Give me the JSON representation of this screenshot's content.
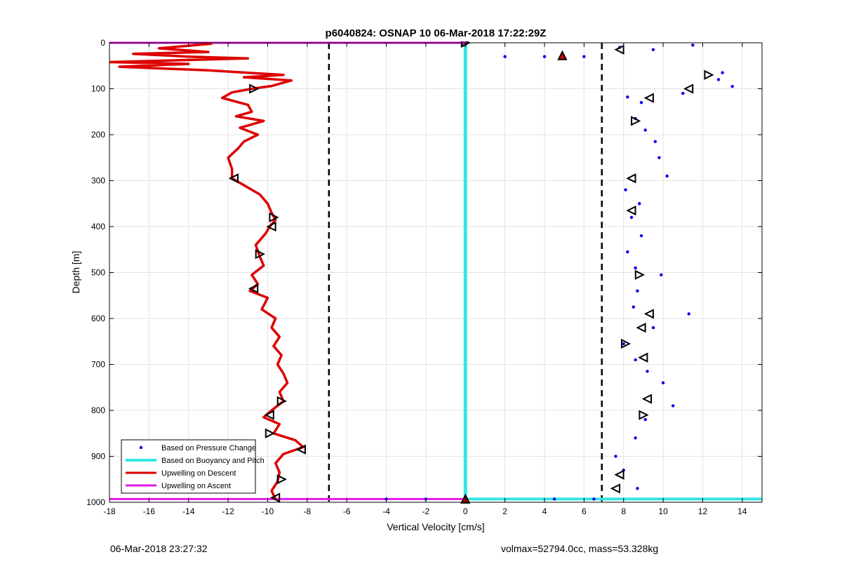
{
  "chart_data": {
    "type": "scatter",
    "title": "p6040824: OSNAP 10 06-Mar-2018 17:22:29Z",
    "xlabel": "Vertical Velocity [cm/s]",
    "ylabel": "Depth [m]",
    "xlim": [
      -18,
      15
    ],
    "ylim": [
      0,
      1000
    ],
    "y_reversed": true,
    "grid": true,
    "xticks": [
      -18,
      -16,
      -14,
      -12,
      -10,
      -8,
      -6,
      -4,
      -2,
      0,
      2,
      4,
      6,
      8,
      10,
      12,
      14
    ],
    "yticks": [
      0,
      100,
      200,
      300,
      400,
      500,
      600,
      700,
      800,
      900,
      1000
    ],
    "legend_position": "bottom-left",
    "colors": {
      "pressure": "#0000ee",
      "buoyancy": "#33e6e6",
      "descent": "#dd0000",
      "ascent": "#e619e6",
      "reference_lines": "#000000"
    },
    "series": [
      {
        "name": "Based on Pressure Change",
        "style": "dots",
        "points": [
          [
            2.0,
            30
          ],
          [
            4.0,
            30
          ],
          [
            6.0,
            30
          ],
          [
            7.8,
            10
          ],
          [
            9.5,
            15
          ],
          [
            11.5,
            5
          ],
          [
            13.0,
            65
          ],
          [
            13.5,
            95
          ],
          [
            12.8,
            80
          ],
          [
            11.0,
            110
          ],
          [
            8.2,
            118
          ],
          [
            8.9,
            130
          ],
          [
            8.6,
            165
          ],
          [
            9.1,
            190
          ],
          [
            9.6,
            215
          ],
          [
            9.8,
            250
          ],
          [
            10.2,
            290
          ],
          [
            8.1,
            320
          ],
          [
            8.8,
            350
          ],
          [
            8.4,
            380
          ],
          [
            8.9,
            420
          ],
          [
            8.2,
            455
          ],
          [
            8.6,
            490
          ],
          [
            9.9,
            505
          ],
          [
            8.7,
            540
          ],
          [
            8.5,
            575
          ],
          [
            11.3,
            590
          ],
          [
            9.5,
            620
          ],
          [
            8.0,
            655
          ],
          [
            8.6,
            690
          ],
          [
            9.2,
            715
          ],
          [
            10.0,
            740
          ],
          [
            10.5,
            790
          ],
          [
            9.1,
            820
          ],
          [
            8.6,
            860
          ],
          [
            7.6,
            900
          ],
          [
            8.0,
            930
          ],
          [
            8.7,
            970
          ],
          [
            -2.0,
            993
          ],
          [
            -4.0,
            993
          ],
          [
            4.5,
            993
          ],
          [
            6.5,
            993
          ]
        ]
      },
      {
        "name": "Based on Buoyancy and Pitch",
        "style": "line",
        "points": [
          [
            0,
            0
          ],
          [
            0,
            993
          ],
          [
            15,
            993
          ]
        ]
      },
      {
        "name": "Upwelling on Descent",
        "style": "line",
        "points": [
          [
            -12.8,
            2
          ],
          [
            -15.5,
            12
          ],
          [
            -13.0,
            20
          ],
          [
            -16.8,
            24
          ],
          [
            -14.0,
            30
          ],
          [
            -11.0,
            34
          ],
          [
            -18.0,
            42
          ],
          [
            -14.0,
            46
          ],
          [
            -17.5,
            52
          ],
          [
            -13.0,
            60
          ],
          [
            -9.2,
            70
          ],
          [
            -11.2,
            75
          ],
          [
            -8.8,
            82
          ],
          [
            -9.8,
            94
          ],
          [
            -10.8,
            100
          ],
          [
            -11.8,
            108
          ],
          [
            -12.3,
            120
          ],
          [
            -11.0,
            135
          ],
          [
            -10.8,
            150
          ],
          [
            -11.6,
            160
          ],
          [
            -10.2,
            170
          ],
          [
            -11.4,
            185
          ],
          [
            -10.5,
            200
          ],
          [
            -11.2,
            215
          ],
          [
            -11.5,
            230
          ],
          [
            -12.0,
            250
          ],
          [
            -11.8,
            275
          ],
          [
            -11.8,
            295
          ],
          [
            -11.0,
            315
          ],
          [
            -10.4,
            330
          ],
          [
            -10.0,
            350
          ],
          [
            -9.8,
            370
          ],
          [
            -9.6,
            385
          ],
          [
            -9.9,
            400
          ],
          [
            -10.1,
            415
          ],
          [
            -10.6,
            440
          ],
          [
            -10.4,
            465
          ],
          [
            -10.2,
            485
          ],
          [
            -10.8,
            505
          ],
          [
            -10.5,
            525
          ],
          [
            -10.9,
            540
          ],
          [
            -10.0,
            555
          ],
          [
            -10.3,
            580
          ],
          [
            -9.6,
            600
          ],
          [
            -9.8,
            620
          ],
          [
            -9.4,
            640
          ],
          [
            -9.7,
            660
          ],
          [
            -9.3,
            680
          ],
          [
            -9.5,
            700
          ],
          [
            -9.2,
            720
          ],
          [
            -9.0,
            740
          ],
          [
            -9.4,
            760
          ],
          [
            -9.2,
            780
          ],
          [
            -9.8,
            800
          ],
          [
            -10.2,
            815
          ],
          [
            -9.4,
            830
          ],
          [
            -9.7,
            850
          ],
          [
            -8.6,
            865
          ],
          [
            -8.2,
            880
          ],
          [
            -9.2,
            895
          ],
          [
            -9.6,
            915
          ],
          [
            -9.4,
            935
          ],
          [
            -9.5,
            955
          ],
          [
            -9.8,
            975
          ],
          [
            -9.6,
            993
          ]
        ]
      },
      {
        "name": "Upwelling on Ascent",
        "style": "line",
        "points": [
          [
            -18,
            0
          ],
          [
            0,
            0
          ],
          [
            -18,
            993
          ],
          [
            0,
            993
          ]
        ]
      }
    ],
    "reference_lines_x": [
      -6.9,
      6.9
    ],
    "markers": {
      "descent_triangles": [
        [
          -10.7,
          100
        ],
        [
          -11.7,
          295
        ],
        [
          -9.7,
          380
        ],
        [
          -9.8,
          400
        ],
        [
          -10.4,
          460
        ],
        [
          -10.7,
          535
        ],
        [
          -9.3,
          780
        ],
        [
          -9.9,
          810
        ],
        [
          -9.9,
          850
        ],
        [
          -8.3,
          885
        ],
        [
          -9.3,
          950
        ],
        [
          -9.6,
          990
        ]
      ],
      "pressure_triangles": [
        [
          7.8,
          15
        ],
        [
          12.3,
          70
        ],
        [
          11.3,
          100
        ],
        [
          9.3,
          120
        ],
        [
          8.6,
          170
        ],
        [
          8.4,
          295
        ],
        [
          8.4,
          365
        ],
        [
          8.8,
          505
        ],
        [
          9.3,
          590
        ],
        [
          8.9,
          620
        ],
        [
          8.1,
          655
        ],
        [
          9.0,
          685
        ],
        [
          9.2,
          775
        ],
        [
          9.0,
          810
        ],
        [
          7.8,
          940
        ],
        [
          7.6,
          970
        ]
      ],
      "top_marker": [
        0,
        0
      ],
      "red_triangles": [
        [
          4.9,
          28
        ],
        [
          0,
          993
        ]
      ]
    }
  },
  "footer": {
    "timestamp": "06-Mar-2018 23:27:32",
    "vehicle_info": "volmax=52794.0cc, mass=53.328kg"
  }
}
